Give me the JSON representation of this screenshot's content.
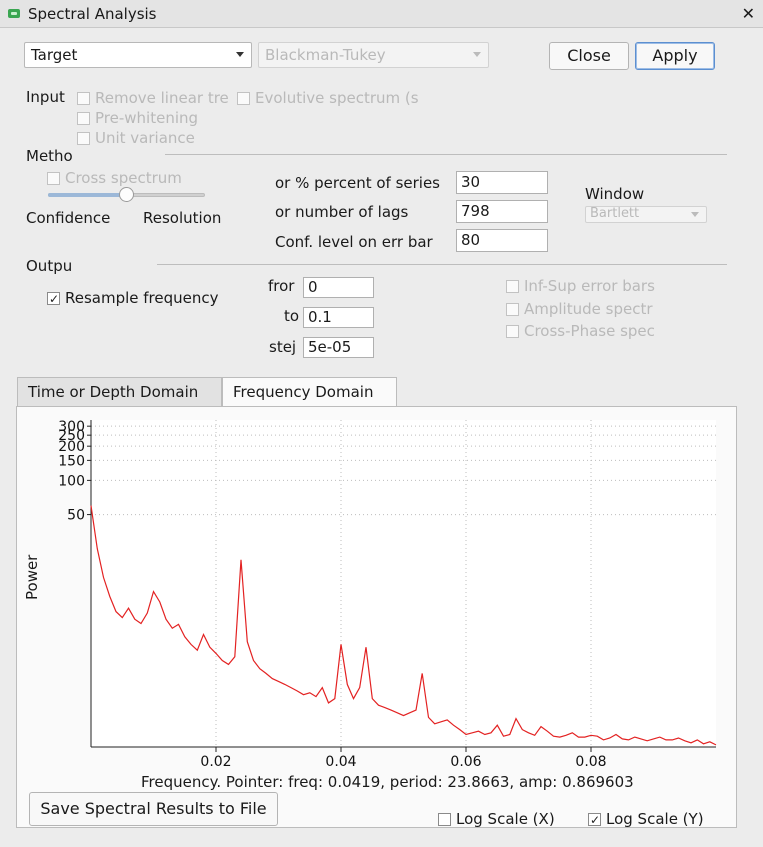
{
  "window": {
    "title": "Spectral Analysis",
    "close_glyph": "✕"
  },
  "toolbar": {
    "target_select": "Target",
    "method_select": "Blackman-Tukey",
    "close_label": "Close",
    "apply_label": "Apply"
  },
  "input": {
    "label": "Input",
    "remove_linear": "Remove linear tre",
    "evolutive": "Evolutive spectrum (s",
    "prewhitening": "Pre-whitening",
    "unit_variance": "Unit variance"
  },
  "method": {
    "label": "Metho",
    "cross_spectrum": "Cross spectrum",
    "confidence": "Confidence",
    "resolution": "Resolution",
    "slider_fraction": 0.5,
    "percent_label": "or % percent of series",
    "percent_value": "30",
    "lags_label": "or number of lags",
    "lags_value": "798",
    "conf_label": "Conf. level on err bar",
    "conf_value": "80",
    "window_label": "Window",
    "window_select": "Bartlett"
  },
  "output": {
    "label": "Outpu",
    "resample": "Resample frequency",
    "resample_checked": true,
    "from_label": "fror",
    "from_value": "0",
    "to_label": "to",
    "to_value": "0.1",
    "step_label": "stej",
    "step_value": "5e-05",
    "inf_sup": "Inf-Sup error bars",
    "amplitude": "Amplitude spectr",
    "cross_phase": "Cross-Phase spec"
  },
  "tabs": [
    {
      "label": "Time or Depth Domain"
    },
    {
      "label": "Frequency Domain"
    }
  ],
  "chart_data": {
    "type": "line",
    "xlabel": "",
    "ylabel": "Power",
    "xlim": [
      0,
      0.1
    ],
    "x_ticks": [
      0.02,
      0.04,
      0.06,
      0.08
    ],
    "x_tick_labels": [
      "0.02",
      "0.04",
      "0.06",
      "0.08"
    ],
    "y_tick_labels": [
      "300",
      "250",
      "200",
      "150",
      "100",
      "50"
    ],
    "yscale": "log",
    "grid": true,
    "series": [
      {
        "color": "#e32222",
        "x": [
          0.0,
          0.001,
          0.002,
          0.003,
          0.004,
          0.005,
          0.006,
          0.007,
          0.008,
          0.009,
          0.01,
          0.011,
          0.012,
          0.013,
          0.014,
          0.015,
          0.016,
          0.017,
          0.018,
          0.019,
          0.02,
          0.021,
          0.022,
          0.023,
          0.024,
          0.025,
          0.026,
          0.027,
          0.028,
          0.029,
          0.03,
          0.031,
          0.032,
          0.033,
          0.034,
          0.035,
          0.036,
          0.037,
          0.038,
          0.039,
          0.04,
          0.041,
          0.042,
          0.043,
          0.044,
          0.045,
          0.046,
          0.047,
          0.048,
          0.049,
          0.05,
          0.051,
          0.052,
          0.053,
          0.054,
          0.055,
          0.056,
          0.057,
          0.058,
          0.059,
          0.06,
          0.061,
          0.062,
          0.063,
          0.064,
          0.065,
          0.066,
          0.067,
          0.068,
          0.069,
          0.07,
          0.071,
          0.072,
          0.073,
          0.074,
          0.075,
          0.076,
          0.077,
          0.078,
          0.079,
          0.08,
          0.081,
          0.082,
          0.083,
          0.084,
          0.085,
          0.086,
          0.087,
          0.088,
          0.089,
          0.09,
          0.091,
          0.092,
          0.093,
          0.094,
          0.095,
          0.096,
          0.097,
          0.098,
          0.099,
          0.1
        ],
        "y": [
          60,
          25,
          14,
          9.5,
          7.0,
          6.2,
          7.5,
          6.0,
          5.5,
          6.8,
          10.5,
          8.5,
          6.0,
          5.0,
          5.4,
          4.2,
          3.6,
          3.2,
          4.4,
          3.4,
          3.0,
          2.6,
          2.4,
          2.8,
          20,
          3.8,
          2.6,
          2.2,
          2.0,
          1.8,
          1.7,
          1.6,
          1.5,
          1.4,
          1.3,
          1.35,
          1.25,
          1.5,
          1.1,
          1.2,
          3.6,
          1.6,
          1.2,
          1.5,
          3.4,
          1.2,
          1.05,
          1.0,
          0.95,
          0.9,
          0.85,
          0.9,
          0.95,
          2.0,
          0.82,
          0.72,
          0.75,
          0.78,
          0.7,
          0.64,
          0.58,
          0.6,
          0.62,
          0.58,
          0.6,
          0.7,
          0.56,
          0.58,
          0.8,
          0.64,
          0.6,
          0.57,
          0.68,
          0.62,
          0.56,
          0.55,
          0.57,
          0.6,
          0.55,
          0.55,
          0.57,
          0.56,
          0.52,
          0.54,
          0.58,
          0.53,
          0.52,
          0.55,
          0.53,
          0.51,
          0.53,
          0.55,
          0.52,
          0.52,
          0.54,
          0.51,
          0.49,
          0.52,
          0.48,
          0.5,
          0.47
        ]
      }
    ]
  },
  "status": {
    "text": "Frequency. Pointer: freq: 0.0419, period: 23.8663, amp: 0.869603"
  },
  "bottom": {
    "save_label": "Save Spectral Results to File",
    "log_x": "Log Scale (X)",
    "log_x_checked": false,
    "log_y": "Log Scale (Y)",
    "log_y_checked": true
  }
}
